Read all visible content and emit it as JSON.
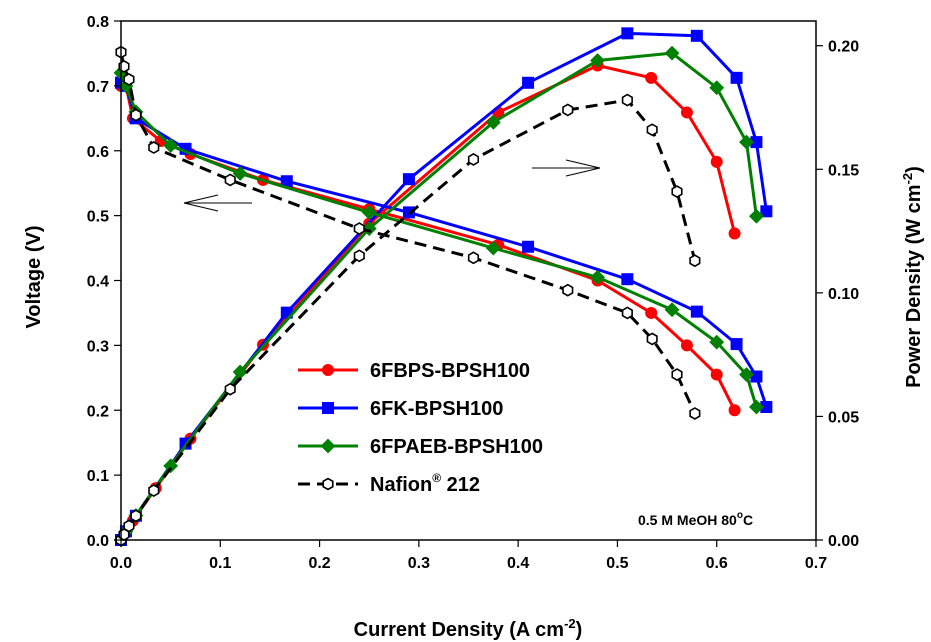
{
  "chart_data": {
    "type": "line",
    "xlabel": "Current Density (A cm",
    "xlabel_sup": "-2",
    "xlabel_end": ")",
    "ylabel_left": "Voltage (V)",
    "ylabel_right": "Power Density (W cm",
    "ylabel_right_sup": "-2",
    "ylabel_right_end": ")",
    "xlim": [
      0,
      0.7
    ],
    "ylim_left": [
      0,
      0.8
    ],
    "ylim_right": [
      0,
      0.21
    ],
    "x_ticks": [
      "0.0",
      "0.1",
      "0.2",
      "0.3",
      "0.4",
      "0.5",
      "0.6",
      "0.7"
    ],
    "y_left_ticks": [
      "0.0",
      "0.1",
      "0.2",
      "0.3",
      "0.4",
      "0.5",
      "0.6",
      "0.7",
      "0.8"
    ],
    "y_right_ticks": [
      "0.00",
      "0.05",
      "0.10",
      "0.15",
      "0.20"
    ],
    "annotation": "0.5 M MeOH 80",
    "annotation_sup": "o",
    "annotation_end": "C",
    "legend_position": "lower-left",
    "series": [
      {
        "name": "6FBPS-BPSH100",
        "color": "#ff0000",
        "marker": "circle",
        "dash": false,
        "polarization": [
          [
            0.0,
            0.7
          ],
          [
            0.005,
            0.7
          ],
          [
            0.012,
            0.65
          ],
          [
            0.04,
            0.615
          ],
          [
            0.07,
            0.595
          ],
          [
            0.143,
            0.555
          ],
          [
            0.25,
            0.51
          ],
          [
            0.38,
            0.455
          ],
          [
            0.48,
            0.4
          ],
          [
            0.534,
            0.35
          ],
          [
            0.57,
            0.3
          ],
          [
            0.6,
            0.255
          ],
          [
            0.618,
            0.2
          ]
        ],
        "power": [
          [
            0.0,
            0.0
          ],
          [
            0.005,
            0.0035
          ],
          [
            0.012,
            0.0078
          ],
          [
            0.035,
            0.021
          ],
          [
            0.07,
            0.041
          ],
          [
            0.143,
            0.079
          ],
          [
            0.25,
            0.128
          ],
          [
            0.38,
            0.173
          ],
          [
            0.48,
            0.192
          ],
          [
            0.534,
            0.187
          ],
          [
            0.57,
            0.173
          ],
          [
            0.6,
            0.153
          ],
          [
            0.618,
            0.124
          ]
        ]
      },
      {
        "name": "6FK-BPSH100",
        "color": "#0000ff",
        "marker": "square",
        "dash": false,
        "polarization": [
          [
            0.0,
            0.705
          ],
          [
            0.005,
            0.7
          ],
          [
            0.015,
            0.65
          ],
          [
            0.065,
            0.603
          ],
          [
            0.167,
            0.553
          ],
          [
            0.29,
            0.505
          ],
          [
            0.41,
            0.452
          ],
          [
            0.51,
            0.402
          ],
          [
            0.58,
            0.352
          ],
          [
            0.62,
            0.302
          ],
          [
            0.64,
            0.252
          ],
          [
            0.65,
            0.205
          ]
        ],
        "power": [
          [
            0.0,
            0.0
          ],
          [
            0.005,
            0.0035
          ],
          [
            0.015,
            0.0098
          ],
          [
            0.065,
            0.039
          ],
          [
            0.167,
            0.092
          ],
          [
            0.29,
            0.146
          ],
          [
            0.41,
            0.185
          ],
          [
            0.51,
            0.205
          ],
          [
            0.58,
            0.204
          ],
          [
            0.62,
            0.187
          ],
          [
            0.64,
            0.161
          ],
          [
            0.65,
            0.133
          ]
        ]
      },
      {
        "name": "6FPAEB-BPSH100",
        "color": "#008000",
        "marker": "diamond",
        "dash": false,
        "polarization": [
          [
            0.0,
            0.72
          ],
          [
            0.005,
            0.7
          ],
          [
            0.015,
            0.66
          ],
          [
            0.05,
            0.608
          ],
          [
            0.12,
            0.565
          ],
          [
            0.25,
            0.505
          ],
          [
            0.375,
            0.45
          ],
          [
            0.48,
            0.405
          ],
          [
            0.555,
            0.355
          ],
          [
            0.6,
            0.305
          ],
          [
            0.63,
            0.255
          ],
          [
            0.64,
            0.205
          ]
        ],
        "power": [
          [
            0.0,
            0.0
          ],
          [
            0.005,
            0.0035
          ],
          [
            0.015,
            0.0099
          ],
          [
            0.05,
            0.03
          ],
          [
            0.12,
            0.068
          ],
          [
            0.25,
            0.126
          ],
          [
            0.375,
            0.169
          ],
          [
            0.48,
            0.194
          ],
          [
            0.555,
            0.197
          ],
          [
            0.6,
            0.183
          ],
          [
            0.63,
            0.161
          ],
          [
            0.64,
            0.131
          ]
        ]
      },
      {
        "name": "Nafion",
        "name_sup": "®",
        "name_end": " 212",
        "color": "#000000",
        "marker": "hexagon-open",
        "dash": true,
        "polarization": [
          [
            0.0,
            0.752
          ],
          [
            0.003,
            0.73
          ],
          [
            0.008,
            0.71
          ],
          [
            0.015,
            0.655
          ],
          [
            0.033,
            0.605
          ],
          [
            0.11,
            0.555
          ],
          [
            0.24,
            0.48
          ],
          [
            0.355,
            0.435
          ],
          [
            0.45,
            0.385
          ],
          [
            0.51,
            0.35
          ],
          [
            0.535,
            0.31
          ],
          [
            0.56,
            0.255
          ],
          [
            0.578,
            0.195
          ]
        ],
        "power": [
          [
            0.0,
            0.0
          ],
          [
            0.003,
            0.0022
          ],
          [
            0.008,
            0.0057
          ],
          [
            0.015,
            0.0098
          ],
          [
            0.033,
            0.02
          ],
          [
            0.11,
            0.061
          ],
          [
            0.24,
            0.115
          ],
          [
            0.355,
            0.154
          ],
          [
            0.45,
            0.174
          ],
          [
            0.51,
            0.178
          ],
          [
            0.535,
            0.166
          ],
          [
            0.56,
            0.141
          ],
          [
            0.578,
            0.113
          ]
        ]
      }
    ]
  }
}
